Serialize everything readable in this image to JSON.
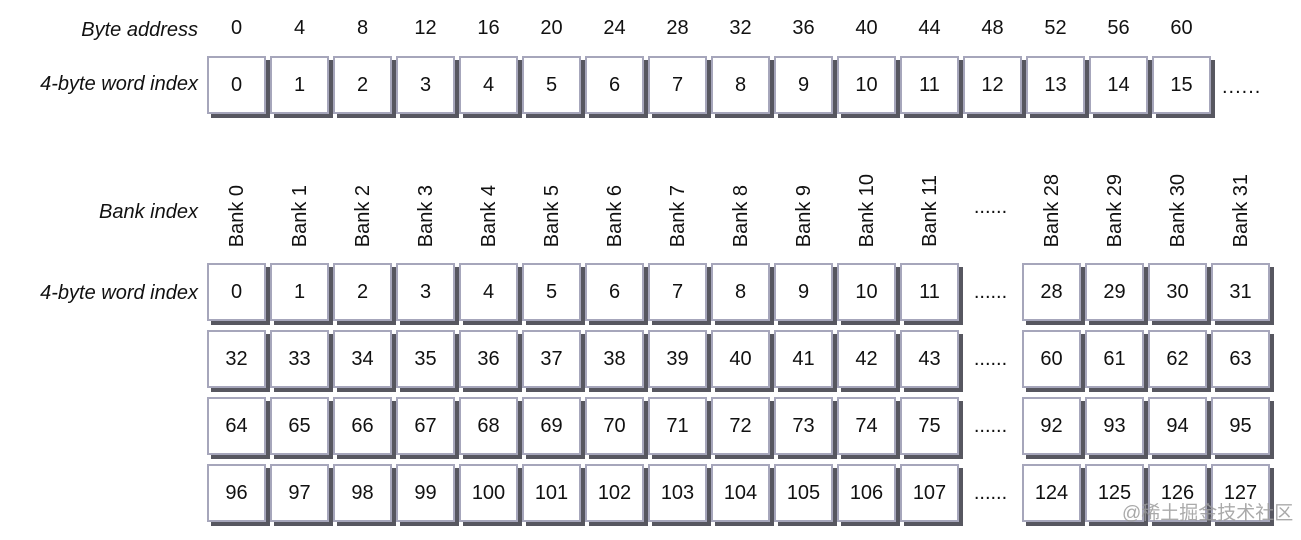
{
  "colors": {
    "box_border": "#a6a6bb",
    "box_shadow": "#575760",
    "text": "#111111",
    "watermark": "#9c9c9c"
  },
  "top_section": {
    "byte_address_label": "Byte address",
    "word_index_label": "4-byte word index",
    "byte_addresses": [
      "0",
      "4",
      "8",
      "12",
      "16",
      "20",
      "24",
      "28",
      "32",
      "36",
      "40",
      "44",
      "48",
      "52",
      "56",
      "60"
    ],
    "word_indices": [
      "0",
      "1",
      "2",
      "3",
      "4",
      "5",
      "6",
      "7",
      "8",
      "9",
      "10",
      "11",
      "12",
      "13",
      "14",
      "15"
    ],
    "ellipsis": "......"
  },
  "bank_section": {
    "bank_index_label": "Bank index",
    "word_index_label": "4-byte word index",
    "bank_labels_left": [
      "Bank 0",
      "Bank 1",
      "Bank 2",
      "Bank 3",
      "Bank 4",
      "Bank 5",
      "Bank 6",
      "Bank 7",
      "Bank 8",
      "Bank 9",
      "Bank 10",
      "Bank 11"
    ],
    "bank_labels_right": [
      "Bank 28",
      "Bank 29",
      "Bank 30",
      "Bank 31"
    ],
    "ellipsis": "......",
    "rows": [
      {
        "left": [
          "0",
          "1",
          "2",
          "3",
          "4",
          "5",
          "6",
          "7",
          "8",
          "9",
          "10",
          "11"
        ],
        "right": [
          "28",
          "29",
          "30",
          "31"
        ]
      },
      {
        "left": [
          "32",
          "33",
          "34",
          "35",
          "36",
          "37",
          "38",
          "39",
          "40",
          "41",
          "42",
          "43"
        ],
        "right": [
          "60",
          "61",
          "62",
          "63"
        ]
      },
      {
        "left": [
          "64",
          "65",
          "66",
          "67",
          "68",
          "69",
          "70",
          "71",
          "72",
          "73",
          "74",
          "75"
        ],
        "right": [
          "92",
          "93",
          "94",
          "95"
        ]
      },
      {
        "left": [
          "96",
          "97",
          "98",
          "99",
          "100",
          "101",
          "102",
          "103",
          "104",
          "105",
          "106",
          "107"
        ],
        "right": [
          "124",
          "125",
          "126",
          "127"
        ]
      }
    ]
  },
  "watermark": "@稀土掘金技术社区"
}
